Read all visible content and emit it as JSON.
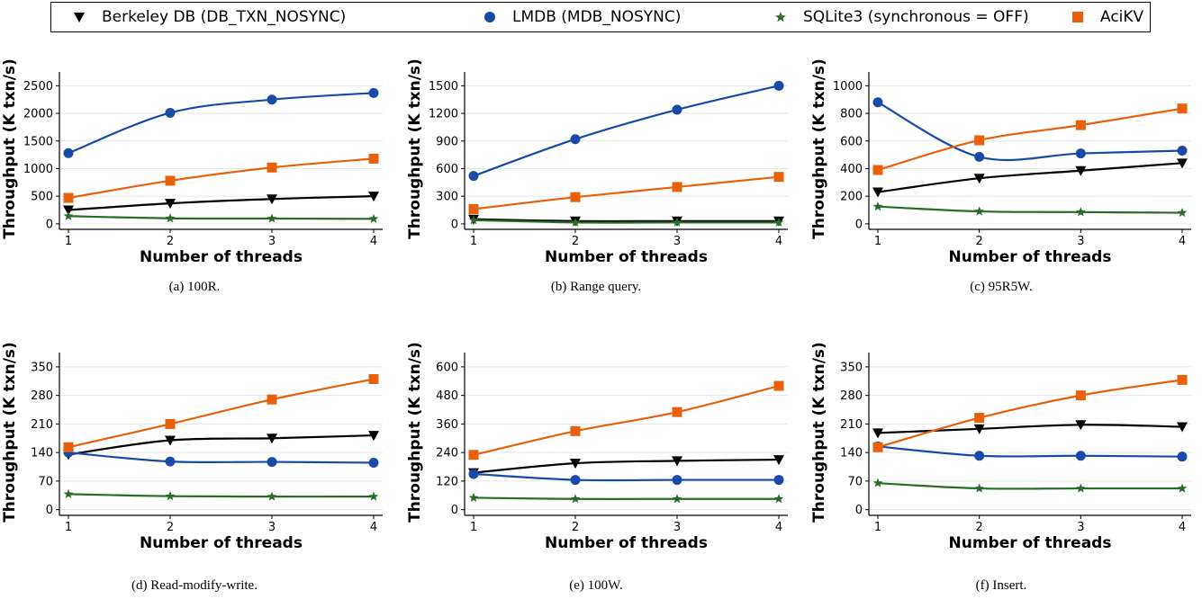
{
  "legend": [
    {
      "label": "Berkeley DB (DB_TXN_NOSYNC)",
      "marker": "triangle-down",
      "color": "#000000"
    },
    {
      "label": "LMDB (MDB_NOSYNC)",
      "marker": "circle",
      "color": "#1a4aa8"
    },
    {
      "label": "SQLite3 (synchronous = OFF)",
      "marker": "star",
      "color": "#2a6a2a"
    },
    {
      "label": "AciKV",
      "marker": "square",
      "color": "#e8600a"
    }
  ],
  "chart_data": [
    {
      "type": "line",
      "caption": "(a)  100R.",
      "xlabel": "Number of threads",
      "ylabel": "Throughput (K txn/s)",
      "x": [
        1,
        2,
        3,
        4
      ],
      "yticks": [
        0,
        500,
        1000,
        1500,
        2000,
        2500
      ],
      "ylim": [
        -100,
        2750
      ],
      "grid": true,
      "series": [
        {
          "name": "Berkeley DB (DB_TXN_NOSYNC)",
          "values": [
            250,
            370,
            450,
            500
          ]
        },
        {
          "name": "LMDB (MDB_NOSYNC)",
          "values": [
            1280,
            2010,
            2250,
            2370
          ]
        },
        {
          "name": "SQLite3 (synchronous = OFF)",
          "values": [
            140,
            100,
            95,
            90
          ]
        },
        {
          "name": "AciKV",
          "values": [
            470,
            780,
            1020,
            1180
          ]
        }
      ]
    },
    {
      "type": "line",
      "caption": "(b)  Range query.",
      "xlabel": "Number of threads",
      "ylabel": "Throughput (K txn/s)",
      "x": [
        1,
        2,
        3,
        4
      ],
      "yticks": [
        0,
        300,
        600,
        900,
        1200,
        1500
      ],
      "ylim": [
        -60,
        1650
      ],
      "grid": true,
      "series": [
        {
          "name": "Berkeley DB (DB_TXN_NOSYNC)",
          "values": [
            50,
            30,
            30,
            30
          ]
        },
        {
          "name": "LMDB (MDB_NOSYNC)",
          "values": [
            520,
            920,
            1240,
            1500
          ]
        },
        {
          "name": "SQLite3 (synchronous = OFF)",
          "values": [
            40,
            15,
            15,
            15
          ]
        },
        {
          "name": "AciKV",
          "values": [
            160,
            290,
            400,
            510
          ]
        }
      ]
    },
    {
      "type": "line",
      "caption": "(c)  95R5W.",
      "xlabel": "Number of threads",
      "ylabel": "Throughput (K txn/s)",
      "x": [
        1,
        2,
        3,
        4
      ],
      "yticks": [
        0,
        200,
        400,
        600,
        800,
        1000
      ],
      "ylim": [
        -40,
        1100
      ],
      "grid": true,
      "series": [
        {
          "name": "Berkeley DB (DB_TXN_NOSYNC)",
          "values": [
            230,
            330,
            385,
            440
          ]
        },
        {
          "name": "LMDB (MDB_NOSYNC)",
          "values": [
            880,
            485,
            510,
            530
          ]
        },
        {
          "name": "SQLite3 (synchronous = OFF)",
          "values": [
            125,
            90,
            85,
            80
          ]
        },
        {
          "name": "AciKV",
          "values": [
            390,
            605,
            715,
            835
          ]
        }
      ]
    },
    {
      "type": "line",
      "caption": "(d)  Read-modify-write.",
      "xlabel": "Number of threads",
      "ylabel": "Throughput (K txn/s)",
      "x": [
        1,
        2,
        3,
        4
      ],
      "yticks": [
        0,
        70,
        140,
        210,
        280,
        350
      ],
      "ylim": [
        -14,
        385
      ],
      "grid": true,
      "series": [
        {
          "name": "Berkeley DB (DB_TXN_NOSYNC)",
          "values": [
            135,
            170,
            175,
            182
          ]
        },
        {
          "name": "LMDB (MDB_NOSYNC)",
          "values": [
            140,
            118,
            117,
            115
          ]
        },
        {
          "name": "SQLite3 (synchronous = OFF)",
          "values": [
            38,
            33,
            32,
            32
          ]
        },
        {
          "name": "AciKV",
          "values": [
            153,
            210,
            270,
            320
          ]
        }
      ]
    },
    {
      "type": "line",
      "caption": "(e)  100W.",
      "xlabel": "Number of threads",
      "ylabel": "Throughput (K txn/s)",
      "x": [
        1,
        2,
        3,
        4
      ],
      "yticks": [
        0,
        120,
        240,
        360,
        480,
        600
      ],
      "ylim": [
        -24,
        660
      ],
      "grid": true,
      "series": [
        {
          "name": "Berkeley DB (DB_TXN_NOSYNC)",
          "values": [
            155,
            195,
            205,
            210
          ]
        },
        {
          "name": "LMDB (MDB_NOSYNC)",
          "values": [
            150,
            125,
            125,
            125
          ]
        },
        {
          "name": "SQLite3 (synchronous = OFF)",
          "values": [
            50,
            45,
            45,
            45
          ]
        },
        {
          "name": "AciKV",
          "values": [
            230,
            330,
            410,
            520
          ]
        }
      ]
    },
    {
      "type": "line",
      "caption": "(f)  Insert.",
      "xlabel": "Number of threads",
      "ylabel": "Throughput (K txn/s)",
      "x": [
        1,
        2,
        3,
        4
      ],
      "yticks": [
        0,
        70,
        140,
        210,
        280,
        350
      ],
      "ylim": [
        -14,
        385
      ],
      "grid": true,
      "series": [
        {
          "name": "Berkeley DB (DB_TXN_NOSYNC)",
          "values": [
            188,
            198,
            208,
            203
          ]
        },
        {
          "name": "LMDB (MDB_NOSYNC)",
          "values": [
            155,
            132,
            132,
            130
          ]
        },
        {
          "name": "SQLite3 (synchronous = OFF)",
          "values": [
            65,
            52,
            52,
            52
          ]
        },
        {
          "name": "AciKV",
          "values": [
            153,
            225,
            280,
            318
          ]
        }
      ]
    }
  ]
}
